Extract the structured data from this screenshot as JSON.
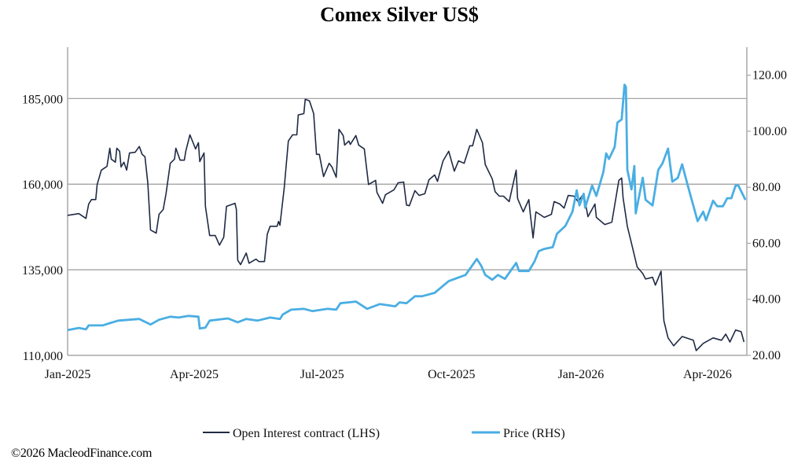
{
  "chart_data": {
    "type": "line",
    "title": "Comex Silver US$",
    "x_unit": "days since 2025-01-01",
    "xlim": [
      0,
      483
    ],
    "x_ticks": [
      {
        "day": 0,
        "label": "Jan-2025"
      },
      {
        "day": 90,
        "label": "Apr-2025"
      },
      {
        "day": 181,
        "label": "Jul-2025"
      },
      {
        "day": 273,
        "label": "Oct-2025"
      },
      {
        "day": 365,
        "label": "Jan-2026"
      },
      {
        "day": 455,
        "label": "Apr-2026"
      }
    ],
    "y_left": {
      "lim": [
        110000,
        200000
      ],
      "ticks": [
        110000,
        135000,
        160000,
        185000
      ],
      "tick_labels": [
        "110,000",
        "135,000",
        "160,000",
        "185,000"
      ],
      "gridlines": true
    },
    "y_right": {
      "lim": [
        20,
        130
      ],
      "ticks": [
        20,
        40,
        60,
        80,
        100,
        120
      ],
      "tick_labels": [
        "20.00",
        "40.00",
        "60.00",
        "80.00",
        "100.00",
        "120.00"
      ]
    },
    "legend_position": "bottom",
    "series": [
      {
        "name": "Open Interest contract (LHS)",
        "axis": "left",
        "color": "#1f2a44",
        "points": [
          [
            0,
            150900
          ],
          [
            8,
            151400
          ],
          [
            13,
            150000
          ],
          [
            15,
            154200
          ],
          [
            17,
            155500
          ],
          [
            20,
            155500
          ],
          [
            21,
            159900
          ],
          [
            24,
            164100
          ],
          [
            28,
            165200
          ],
          [
            30,
            170500
          ],
          [
            31,
            167300
          ],
          [
            34,
            166400
          ],
          [
            35,
            170500
          ],
          [
            37,
            169600
          ],
          [
            38,
            165000
          ],
          [
            40,
            166400
          ],
          [
            42,
            164100
          ],
          [
            44,
            169100
          ],
          [
            48,
            169300
          ],
          [
            51,
            171000
          ],
          [
            53,
            168700
          ],
          [
            55,
            168000
          ],
          [
            57,
            160400
          ],
          [
            59,
            146600
          ],
          [
            63,
            145700
          ],
          [
            65,
            151200
          ],
          [
            68,
            152600
          ],
          [
            70,
            157200
          ],
          [
            73,
            166100
          ],
          [
            76,
            167300
          ],
          [
            77,
            170500
          ],
          [
            80,
            167000
          ],
          [
            83,
            167000
          ],
          [
            84,
            169600
          ],
          [
            87,
            174400
          ],
          [
            91,
            170300
          ],
          [
            93,
            172100
          ],
          [
            94,
            166600
          ],
          [
            97,
            169100
          ],
          [
            98,
            153500
          ],
          [
            101,
            145000
          ],
          [
            105,
            145000
          ],
          [
            108,
            142200
          ],
          [
            111,
            144500
          ],
          [
            113,
            153500
          ],
          [
            119,
            154400
          ],
          [
            120,
            152600
          ],
          [
            121,
            137800
          ],
          [
            123,
            136500
          ],
          [
            127,
            139900
          ],
          [
            129,
            136900
          ],
          [
            134,
            138100
          ],
          [
            136,
            137400
          ],
          [
            140,
            137400
          ],
          [
            142,
            145400
          ],
          [
            144,
            147700
          ],
          [
            149,
            147700
          ],
          [
            150,
            149100
          ],
          [
            151,
            148000
          ],
          [
            154,
            158800
          ],
          [
            157,
            172600
          ],
          [
            160,
            174400
          ],
          [
            163,
            174400
          ],
          [
            164,
            180200
          ],
          [
            168,
            180600
          ],
          [
            169,
            184800
          ],
          [
            172,
            184300
          ],
          [
            175,
            180600
          ],
          [
            177,
            168700
          ],
          [
            179,
            168700
          ],
          [
            182,
            162200
          ],
          [
            186,
            166100
          ],
          [
            188,
            165000
          ],
          [
            191,
            162000
          ],
          [
            193,
            176000
          ],
          [
            196,
            174200
          ],
          [
            197,
            171400
          ],
          [
            200,
            172600
          ],
          [
            201,
            171600
          ],
          [
            205,
            174200
          ],
          [
            207,
            171400
          ],
          [
            211,
            170300
          ],
          [
            214,
            159900
          ],
          [
            219,
            161100
          ],
          [
            220,
            157600
          ],
          [
            224,
            154400
          ],
          [
            226,
            156900
          ],
          [
            232,
            158300
          ],
          [
            235,
            160400
          ],
          [
            239,
            160600
          ],
          [
            241,
            153900
          ],
          [
            243,
            153700
          ],
          [
            247,
            158100
          ],
          [
            250,
            156700
          ],
          [
            254,
            157200
          ],
          [
            257,
            161300
          ],
          [
            261,
            162700
          ],
          [
            263,
            160800
          ],
          [
            267,
            166800
          ],
          [
            271,
            169600
          ],
          [
            275,
            163800
          ],
          [
            278,
            166800
          ],
          [
            282,
            166100
          ],
          [
            286,
            171200
          ],
          [
            288,
            171200
          ],
          [
            291,
            176000
          ],
          [
            295,
            172100
          ],
          [
            297,
            165700
          ],
          [
            302,
            161500
          ],
          [
            304,
            157800
          ],
          [
            307,
            156500
          ],
          [
            310,
            156500
          ],
          [
            314,
            154900
          ],
          [
            319,
            164100
          ],
          [
            320,
            155800
          ],
          [
            324,
            151900
          ],
          [
            328,
            155500
          ],
          [
            329,
            151400
          ],
          [
            331,
            144300
          ],
          [
            333,
            151900
          ],
          [
            339,
            150300
          ],
          [
            344,
            151200
          ],
          [
            346,
            154900
          ],
          [
            350,
            154200
          ],
          [
            353,
            153000
          ],
          [
            356,
            156700
          ],
          [
            360,
            156500
          ],
          [
            363,
            154900
          ],
          [
            367,
            157200
          ],
          [
            370,
            150500
          ],
          [
            375,
            154200
          ],
          [
            376,
            150300
          ],
          [
            382,
            148200
          ],
          [
            387,
            148900
          ],
          [
            392,
            161100
          ],
          [
            394,
            161800
          ],
          [
            395,
            156000
          ],
          [
            398,
            147700
          ],
          [
            401,
            142700
          ],
          [
            405,
            135800
          ],
          [
            409,
            133900
          ],
          [
            411,
            132300
          ],
          [
            416,
            132800
          ],
          [
            418,
            130500
          ],
          [
            422,
            134600
          ],
          [
            424,
            120100
          ],
          [
            427,
            115100
          ],
          [
            431,
            112800
          ],
          [
            437,
            115500
          ],
          [
            445,
            114400
          ],
          [
            447,
            111400
          ],
          [
            452,
            113500
          ],
          [
            459,
            115100
          ],
          [
            465,
            114400
          ],
          [
            468,
            116200
          ],
          [
            471,
            113900
          ],
          [
            475,
            117400
          ],
          [
            479,
            116900
          ],
          [
            481,
            113900
          ]
        ]
      },
      {
        "name": "Price (RHS)",
        "axis": "right",
        "color": "#4aaee3",
        "points": [
          [
            0,
            29.0
          ],
          [
            8,
            29.8
          ],
          [
            13,
            29.3
          ],
          [
            15,
            30.7
          ],
          [
            25,
            30.7
          ],
          [
            30,
            31.5
          ],
          [
            36,
            32.4
          ],
          [
            51,
            33.0
          ],
          [
            59,
            31.0
          ],
          [
            65,
            32.7
          ],
          [
            73,
            33.8
          ],
          [
            79,
            33.5
          ],
          [
            86,
            34.1
          ],
          [
            93,
            33.8
          ],
          [
            94,
            29.6
          ],
          [
            98,
            29.9
          ],
          [
            101,
            32.4
          ],
          [
            114,
            33.2
          ],
          [
            121,
            31.8
          ],
          [
            127,
            33.0
          ],
          [
            135,
            32.4
          ],
          [
            144,
            33.5
          ],
          [
            151,
            33.0
          ],
          [
            153,
            34.6
          ],
          [
            159,
            36.3
          ],
          [
            168,
            36.6
          ],
          [
            174,
            35.8
          ],
          [
            185,
            36.6
          ],
          [
            191,
            36.3
          ],
          [
            194,
            38.6
          ],
          [
            205,
            39.2
          ],
          [
            213,
            36.6
          ],
          [
            222,
            38.3
          ],
          [
            233,
            37.5
          ],
          [
            236,
            38.9
          ],
          [
            241,
            38.6
          ],
          [
            247,
            41.1
          ],
          [
            252,
            41.1
          ],
          [
            261,
            42.3
          ],
          [
            271,
            46.5
          ],
          [
            283,
            48.7
          ],
          [
            289,
            53.0
          ],
          [
            291,
            54.4
          ],
          [
            294,
            52.1
          ],
          [
            297,
            48.7
          ],
          [
            302,
            47.0
          ],
          [
            306,
            48.7
          ],
          [
            311,
            47.3
          ],
          [
            319,
            53.0
          ],
          [
            321,
            50.1
          ],
          [
            328,
            50.1
          ],
          [
            332,
            53.5
          ],
          [
            335,
            57.2
          ],
          [
            339,
            58.0
          ],
          [
            345,
            58.6
          ],
          [
            348,
            63.4
          ],
          [
            354,
            66.2
          ],
          [
            359,
            71.3
          ],
          [
            362,
            78.9
          ],
          [
            364,
            73.5
          ],
          [
            367,
            77.7
          ],
          [
            368,
            72.7
          ],
          [
            373,
            80.6
          ],
          [
            376,
            76.9
          ],
          [
            381,
            85.4
          ],
          [
            383,
            92.1
          ],
          [
            385,
            90.1
          ],
          [
            389,
            94.4
          ],
          [
            391,
            103.1
          ],
          [
            394,
            104.2
          ],
          [
            396,
            116.6
          ],
          [
            397,
            115.8
          ],
          [
            398,
            86.2
          ],
          [
            401,
            79.2
          ],
          [
            403,
            87.6
          ],
          [
            404,
            70.7
          ],
          [
            409,
            83.4
          ],
          [
            411,
            75.5
          ],
          [
            416,
            73.5
          ],
          [
            420,
            86.2
          ],
          [
            423,
            88.5
          ],
          [
            427,
            93.8
          ],
          [
            430,
            82.0
          ],
          [
            434,
            83.4
          ],
          [
            437,
            88.2
          ],
          [
            441,
            80.6
          ],
          [
            448,
            67.9
          ],
          [
            452,
            71.3
          ],
          [
            454,
            68.2
          ],
          [
            459,
            75.2
          ],
          [
            462,
            73.2
          ],
          [
            466,
            73.2
          ],
          [
            469,
            76.1
          ],
          [
            472,
            76.1
          ],
          [
            475,
            80.6
          ],
          [
            477,
            80.6
          ],
          [
            482,
            75.5
          ]
        ]
      }
    ]
  },
  "footer": {
    "copyright": "©2026 MacleodFinance.com"
  }
}
